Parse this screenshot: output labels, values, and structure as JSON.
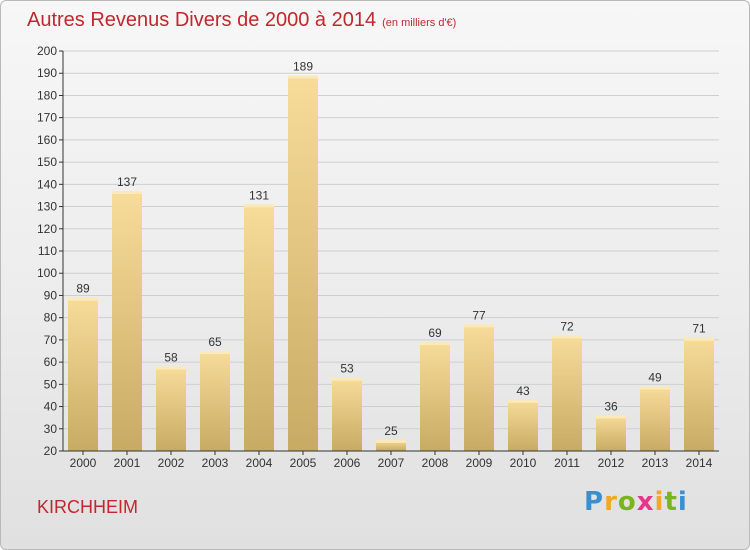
{
  "title": "Autres Revenus Divers de 2000 à 2014",
  "unit": "(en milliers d'€)",
  "commune": "KIRCHHEIM",
  "logo": {
    "letters": [
      "P",
      "r",
      "o",
      "x",
      "i",
      "t",
      "i"
    ],
    "colors": [
      "#3a8fd0",
      "#f5a623",
      "#7ab51d",
      "#e8348a",
      "#f5a623",
      "#7ab51d",
      "#3a8fd0"
    ]
  },
  "colors": {
    "bar_top": "#f7dc9a",
    "bar_bottom": "#c8ab63",
    "title": "#c1272d",
    "text": "#333333"
  },
  "chart_data": {
    "type": "bar",
    "title": "Autres Revenus Divers de 2000 à 2014",
    "categories": [
      "2000",
      "2001",
      "2002",
      "2003",
      "2004",
      "2005",
      "2006",
      "2007",
      "2008",
      "2009",
      "2010",
      "2011",
      "2012",
      "2013",
      "2014"
    ],
    "values": [
      89,
      137,
      58,
      65,
      131,
      189,
      53,
      25,
      69,
      77,
      43,
      72,
      36,
      49,
      71
    ],
    "xlabel": "",
    "ylabel": "",
    "ylim": [
      20,
      200
    ],
    "yticks": [
      20,
      30,
      40,
      50,
      60,
      70,
      80,
      90,
      100,
      110,
      120,
      130,
      140,
      150,
      160,
      170,
      180,
      190,
      200
    ],
    "grid": true,
    "data_labels": true
  }
}
